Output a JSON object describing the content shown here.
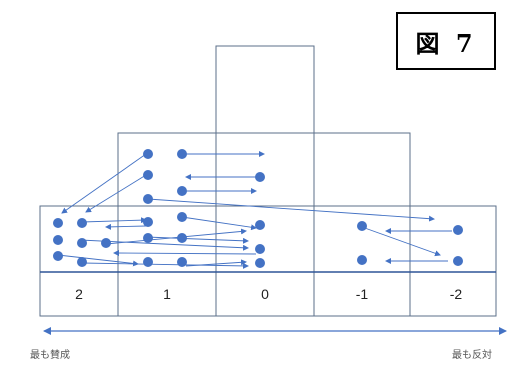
{
  "figure_label": "図 7",
  "scale": {
    "values": [
      "2",
      "1",
      "0",
      "-1",
      "-2"
    ],
    "left_end_label": "最も賛成",
    "right_end_label": "最も反対"
  },
  "colors": {
    "dot": "#4472C4",
    "arrow": "#4472C4",
    "frame": "#5B6F8A",
    "baseline": "#2F5597"
  },
  "distribution": {
    "initial_counts": {
      "2": 6,
      "1": 9,
      "0": 6,
      "-1": 2,
      "-2": 2
    },
    "shape": "pyramid with columns for each scale value"
  }
}
